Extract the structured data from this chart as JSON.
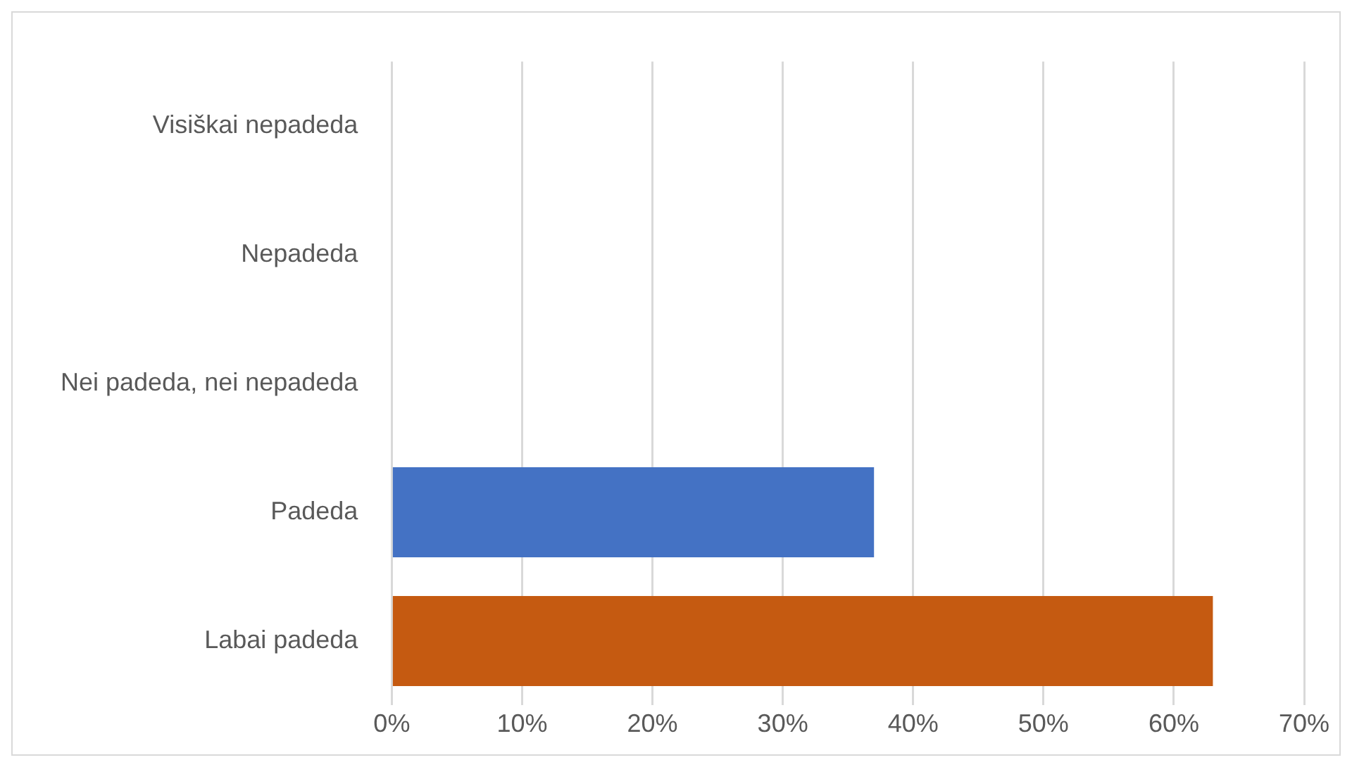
{
  "chart_data": {
    "type": "bar",
    "orientation": "horizontal",
    "categories": [
      "Visiškai nepadeda",
      "Nepadeda",
      "Nei padeda, nei nepadeda",
      "Padeda",
      "Labai padeda"
    ],
    "values": [
      0,
      0,
      0,
      37,
      63
    ],
    "colors": [
      "#4472c4",
      "#4472c4",
      "#4472c4",
      "#4472c4",
      "#c55a11"
    ],
    "xlim": [
      0,
      70
    ],
    "xticks": [
      {
        "value": 0,
        "label": "0%"
      },
      {
        "value": 10,
        "label": "10%"
      },
      {
        "value": 20,
        "label": "20%"
      },
      {
        "value": 30,
        "label": "30%"
      },
      {
        "value": 40,
        "label": "40%"
      },
      {
        "value": 50,
        "label": "50%"
      },
      {
        "value": 60,
        "label": "60%"
      },
      {
        "value": 70,
        "label": "70%"
      }
    ],
    "grid": "x"
  }
}
